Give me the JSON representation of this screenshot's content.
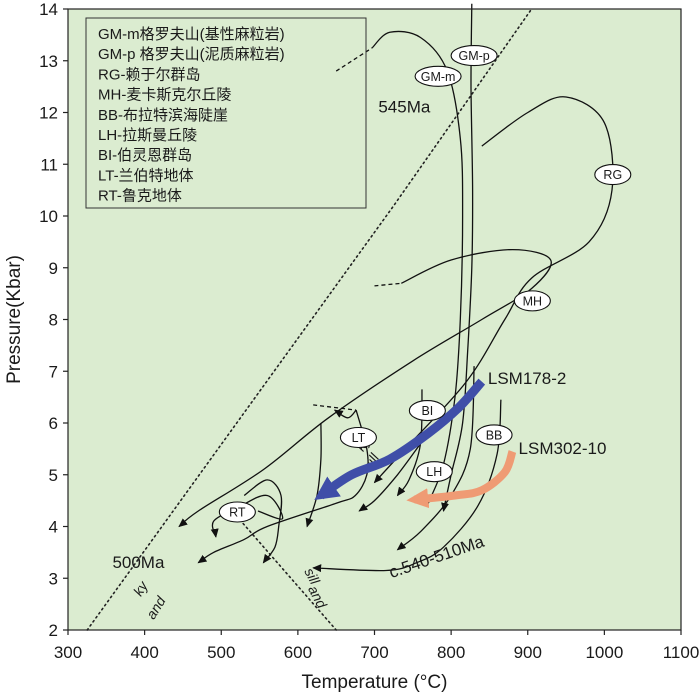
{
  "chart_data": {
    "type": "line",
    "title": "",
    "xlabel": "Temperature (°C)",
    "ylabel": "Pressure(Kbar)",
    "xlim": [
      300,
      1100
    ],
    "ylim": [
      2,
      14
    ],
    "xticks": [
      300,
      400,
      500,
      600,
      700,
      800,
      900,
      1000,
      1100
    ],
    "yticks": [
      2,
      3,
      4,
      5,
      6,
      7,
      8,
      9,
      10,
      11,
      12,
      13,
      14
    ],
    "background_color": "#dbecd0",
    "legend": {
      "placement": "top-left",
      "entries": [
        "GM-m格罗夫山(基性麻粒岩)",
        "GM-p 格罗夫山(泥质麻粒岩)",
        "RG-赖于尔群岛",
        "MH-麦卡斯克尔丘陵",
        "BB-布拉特滨海陡崖",
        "LH-拉斯曼丘陵",
        "BI-伯灵恩群岛",
        "LT-兰伯特地体",
        "RT-鲁克地体"
      ]
    },
    "phase_boundaries": [
      {
        "name": "ky-sill",
        "style": "dotted",
        "points": [
          [
            325,
            2.0
          ],
          [
            725,
            10.2
          ],
          [
            905,
            14.0
          ]
        ]
      },
      {
        "name": "sill-and",
        "style": "dotted",
        "points": [
          [
            520,
            4.2
          ],
          [
            650,
            2.0
          ]
        ]
      }
    ],
    "phase_labels": [
      {
        "text": "ky",
        "x": 690,
        "y": 5.55
      },
      {
        "text": "sill",
        "x": 701,
        "y": 5.2
      },
      {
        "text": "ky",
        "x": 400,
        "y": 2.75
      },
      {
        "text": "and",
        "x": 420,
        "y": 2.38
      },
      {
        "text": "sill",
        "x": 613,
        "y": 3.0
      },
      {
        "text": "and",
        "x": 620,
        "y": 2.6
      }
    ],
    "series": [
      {
        "name": "GM-p",
        "points": [
          [
            827,
            14.1
          ],
          [
            826,
            12.5
          ],
          [
            828,
            10.5
          ],
          [
            827,
            9.0
          ],
          [
            822,
            7.5
          ],
          [
            815,
            6.0
          ],
          [
            800,
            5.0
          ],
          [
            790,
            4.3
          ]
        ]
      },
      {
        "name": "GM-m",
        "points": [
          [
            697,
            13.25
          ],
          [
            720,
            13.55
          ],
          [
            760,
            13.45
          ],
          [
            795,
            12.8
          ],
          [
            812,
            11.5
          ],
          [
            815,
            10.0
          ],
          [
            812,
            8.0
          ],
          [
            805,
            6.5
          ],
          [
            790,
            5.2
          ],
          [
            770,
            4.45
          ]
        ]
      },
      {
        "name": "GM-m dashed",
        "style": "dashed",
        "points": [
          [
            650,
            12.8
          ],
          [
            697,
            13.25
          ]
        ]
      },
      {
        "name": "RG",
        "points": [
          [
            840,
            11.35
          ],
          [
            900,
            12.0
          ],
          [
            950,
            12.3
          ],
          [
            1000,
            11.8
          ],
          [
            1010,
            10.5
          ],
          [
            980,
            9.5
          ],
          [
            905,
            8.8
          ],
          [
            870,
            8.0
          ],
          [
            820,
            6.8
          ],
          [
            740,
            5.5
          ],
          [
            700,
            4.85
          ]
        ]
      },
      {
        "name": "MH",
        "points": [
          [
            735,
            8.7
          ],
          [
            800,
            9.15
          ],
          [
            880,
            9.35
          ],
          [
            930,
            9.15
          ],
          [
            905,
            8.6
          ],
          [
            840,
            8.0
          ],
          [
            750,
            7.2
          ],
          [
            640,
            6.1
          ],
          [
            555,
            5.1
          ],
          [
            470,
            4.3
          ],
          [
            445,
            4.0
          ]
        ]
      },
      {
        "name": "MH dashed",
        "style": "dashed",
        "points": [
          [
            700,
            8.65
          ],
          [
            735,
            8.7
          ]
        ]
      },
      {
        "name": "LT",
        "points": [
          [
            676,
            6.25
          ],
          [
            690,
            5.5
          ],
          [
            690,
            5.0
          ],
          [
            675,
            4.6
          ],
          [
            650,
            4.45
          ],
          [
            560,
            4.0
          ],
          [
            530,
            3.75
          ],
          [
            490,
            3.5
          ],
          [
            470,
            3.3
          ]
        ]
      },
      {
        "name": "LT dashed",
        "style": "dashed",
        "points": [
          [
            620,
            6.35
          ],
          [
            676,
            6.25
          ]
        ]
      },
      {
        "name": "LT upper",
        "points": [
          [
            676,
            6.25
          ],
          [
            665,
            6.1
          ],
          [
            648,
            6.25
          ]
        ]
      },
      {
        "name": "BI",
        "points": [
          [
            762,
            6.65
          ],
          [
            760,
            5.6
          ],
          [
            745,
            4.9
          ],
          [
            730,
            4.6
          ]
        ]
      },
      {
        "name": "BI lower",
        "points": [
          [
            760,
            5.6
          ],
          [
            730,
            5.0
          ],
          [
            700,
            4.5
          ],
          [
            680,
            4.3
          ]
        ]
      },
      {
        "name": "LH",
        "points": [
          [
            830,
            7.1
          ],
          [
            825,
            5.5
          ],
          [
            800,
            4.6
          ],
          [
            760,
            3.9
          ],
          [
            730,
            3.55
          ]
        ]
      },
      {
        "name": "BB",
        "points": [
          [
            865,
            6.45
          ],
          [
            860,
            5.4
          ],
          [
            835,
            4.4
          ],
          [
            790,
            3.6
          ],
          [
            755,
            3.3
          ],
          [
            715,
            3.15
          ],
          [
            620,
            3.2
          ]
        ]
      },
      {
        "name": "RT",
        "points": [
          [
            548,
            4.3
          ],
          [
            580,
            4.15
          ],
          [
            560,
            4.6
          ],
          [
            520,
            4.35
          ],
          [
            490,
            4.1
          ],
          [
            493,
            3.8
          ]
        ]
      },
      {
        "name": "RT upper",
        "points": [
          [
            530,
            4.6
          ],
          [
            560,
            4.9
          ],
          [
            578,
            4.6
          ],
          [
            575,
            4.0
          ],
          [
            570,
            3.6
          ],
          [
            555,
            3.3
          ]
        ]
      },
      {
        "name": "LH late",
        "points": [
          [
            630,
            6.0
          ],
          [
            630,
            5.3
          ],
          [
            625,
            4.6
          ],
          [
            612,
            4.0
          ]
        ]
      }
    ],
    "site_labels": [
      {
        "text": "GM-p",
        "x": 830,
        "y": 13.1
      },
      {
        "text": "GM-m",
        "x": 783,
        "y": 12.7
      },
      {
        "text": "RG",
        "x": 1011,
        "y": 10.8
      },
      {
        "text": "MH",
        "x": 906,
        "y": 8.36
      },
      {
        "text": "BI",
        "x": 769,
        "y": 6.24
      },
      {
        "text": "LT",
        "x": 679,
        "y": 5.72
      },
      {
        "text": "BB",
        "x": 856,
        "y": 5.77
      },
      {
        "text": "LH",
        "x": 778,
        "y": 5.06
      },
      {
        "text": "RT",
        "x": 521,
        "y": 4.28
      }
    ],
    "samples": [
      {
        "name": "LSM178-2",
        "color": "#3f4ea8",
        "points": [
          [
            840,
            6.8
          ],
          [
            810,
            6.3
          ],
          [
            770,
            5.8
          ],
          [
            720,
            5.3
          ],
          [
            670,
            5.0
          ],
          [
            630,
            4.6
          ]
        ]
      },
      {
        "name": "LSM302-10",
        "color": "#ef9b74",
        "points": [
          [
            880,
            5.45
          ],
          [
            870,
            5.05
          ],
          [
            840,
            4.7
          ],
          [
            805,
            4.6
          ],
          [
            752,
            4.52
          ]
        ]
      }
    ],
    "sample_labels": [
      {
        "text": "LSM178-2",
        "x": 848,
        "y": 6.75
      },
      {
        "text": "LSM302-10",
        "x": 888,
        "y": 5.4
      }
    ],
    "annotations": [
      {
        "text": "545Ma",
        "x": 705,
        "y": 12.0
      },
      {
        "text": "500Ma",
        "x": 358,
        "y": 3.2
      },
      {
        "text": "c.540-510Ma",
        "x": 722,
        "y": 3.0
      }
    ]
  }
}
